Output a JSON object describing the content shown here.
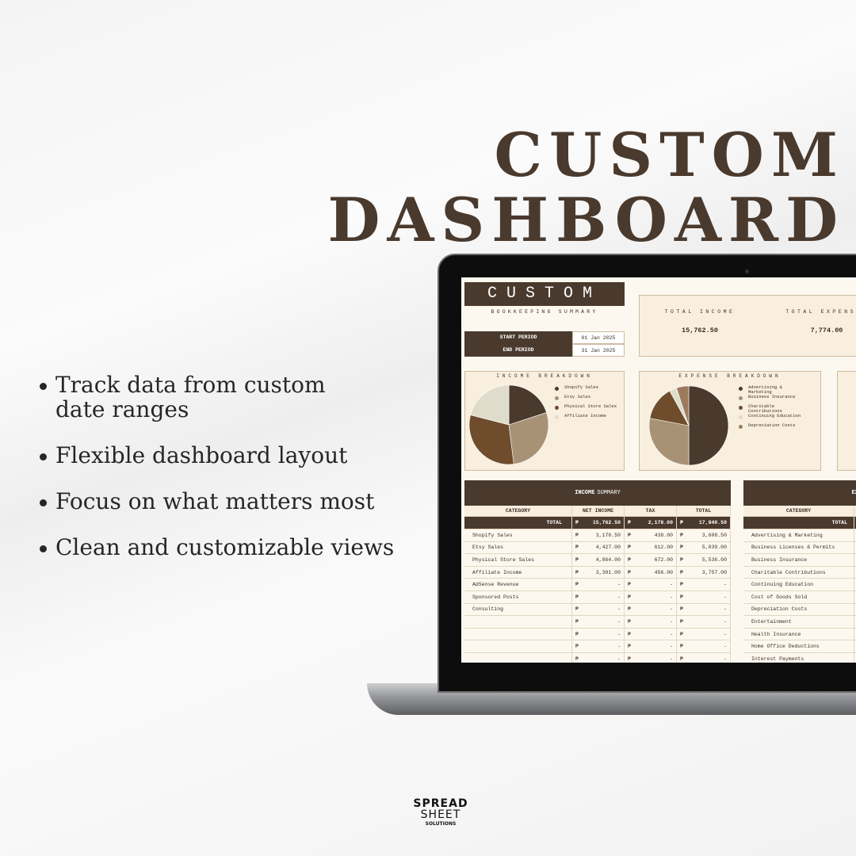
{
  "headline": [
    "CUSTOM",
    "DASHBOARD"
  ],
  "bullets": [
    "Track data from custom date ranges",
    "Flexible dashboard layout",
    "Focus on what matters most",
    "Clean and customizable views"
  ],
  "brand": [
    "SPREAD",
    "SHEET",
    "SOLUTIONS"
  ],
  "dashboard": {
    "title": "CUSTOM",
    "subtitle": "BOOKKEEPING SUMMARY",
    "period": [
      {
        "label": "START PERIOD",
        "value": "01 Jan 2025"
      },
      {
        "label": "END PERIOD",
        "value": "31 Jan 2025"
      }
    ],
    "kpis": [
      {
        "label": "TOTAL INCOME",
        "value": "15,762.50"
      },
      {
        "label": "TOTAL EXPENSES",
        "value": "7,774.00"
      }
    ],
    "income_breakdown": {
      "title": "INCOME BREAKDOWN",
      "slices": [
        {
          "name": "Shopify Sales",
          "value": 20,
          "color": "#4a3a2e"
        },
        {
          "name": "Etsy Sales",
          "value": 28,
          "color": "#a89276"
        },
        {
          "name": "Physical Store Sales",
          "value": 31,
          "color": "#6e4c2c"
        },
        {
          "name": "Affiliate Income",
          "value": 21,
          "color": "#e0dccb"
        }
      ]
    },
    "expense_breakdown": {
      "title": "EXPENSE BREAKDOWN",
      "slices": [
        {
          "name": "Advertising & Marketing",
          "value": 50,
          "color": "#4a3a2e"
        },
        {
          "name": "Business Insurance",
          "value": 28,
          "color": "#a89276"
        },
        {
          "name": "Charitable Contributions",
          "value": 14,
          "color": "#6e4c2c"
        },
        {
          "name": "Continuing Education",
          "value": 3,
          "color": "#e0dccb"
        },
        {
          "name": "Depreciation Costs",
          "value": 5,
          "color": "#9c7a5c"
        }
      ]
    },
    "income_summary": {
      "title_bold": "INCOME",
      "title_rest": "SUMMARY",
      "currency": "₱",
      "columns": [
        "CATEGORY",
        "NET INCOME",
        "TAX",
        "TOTAL"
      ],
      "total": [
        "TOTAL",
        "15,762.50",
        "2,178.00",
        "17,940.50"
      ],
      "rows": [
        [
          "Shopify Sales",
          "3,170.50",
          "438.00",
          "3,608.50"
        ],
        [
          "Etsy Sales",
          "4,427.00",
          "612.00",
          "5,039.00"
        ],
        [
          "Physical Store Sales",
          "4,864.00",
          "672.00",
          "5,536.00"
        ],
        [
          "Affiliate Income",
          "3,301.00",
          "456.00",
          "3,757.00"
        ],
        [
          "AdSense Revenue",
          "-",
          "-",
          "-"
        ],
        [
          "Sponsored Posts",
          "-",
          "-",
          "-"
        ],
        [
          "Consulting",
          "-",
          "-",
          "-"
        ],
        [
          null,
          "-",
          "-",
          "-"
        ],
        [
          null,
          "-",
          "-",
          "-"
        ],
        [
          null,
          "-",
          "-",
          "-"
        ],
        [
          null,
          "-",
          "-",
          "-"
        ]
      ]
    },
    "expense_summary": {
      "title": "EXPENSE SUMMARY",
      "columns": [
        "CATEGORY"
      ],
      "total": "TOTAL",
      "rows": [
        "Advertising & Marketing",
        "Business Licenses & Permits",
        "Business Insurance",
        "Charitable Contributions",
        "Continuing Education",
        "Cost of Goods Sold",
        "Depreciation Costs",
        "Entertainment",
        "Health Insurance",
        "Home Office Deductions",
        "Interest Payments"
      ]
    }
  }
}
